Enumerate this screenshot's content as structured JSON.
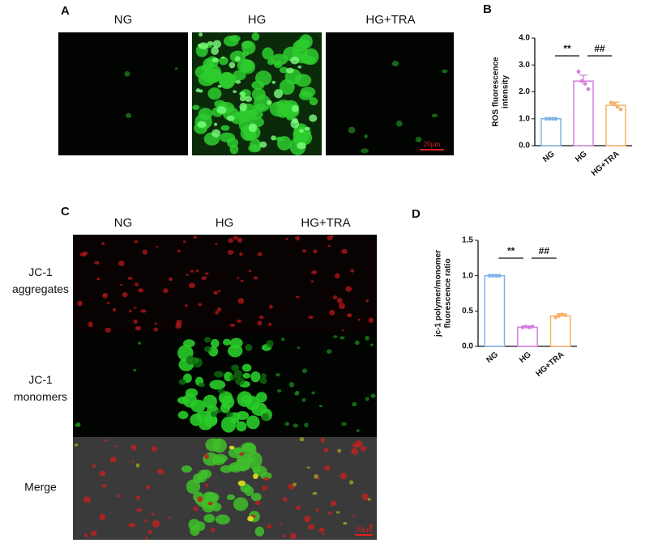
{
  "panels": {
    "a": "A",
    "b": "B",
    "c": "C",
    "d": "D"
  },
  "panel_a": {
    "columns": [
      "NG",
      "HG",
      "HG+TRA"
    ],
    "scale_bar": "20μm"
  },
  "panel_c": {
    "columns": [
      "NG",
      "HG",
      "HG+TRA"
    ],
    "rows": [
      [
        "JC-1",
        "aggregates"
      ],
      [
        "JC-1",
        "monomers"
      ],
      [
        "Merge"
      ]
    ],
    "scale_bar": "50μm"
  },
  "chart_data": [
    {
      "type": "bar",
      "ylabel": [
        "ROS fluorescence",
        "intensity"
      ],
      "categories": [
        "NG",
        "HG",
        "HG+TRA"
      ],
      "values": [
        1.0,
        2.4,
        1.5
      ],
      "errors": [
        0.01,
        0.22,
        0.12
      ],
      "points": [
        [
          1.0,
          1.0,
          1.0,
          1.0
        ],
        [
          2.75,
          2.4,
          2.3,
          2.1
        ],
        [
          1.6,
          1.55,
          1.45,
          1.35
        ]
      ],
      "colors": [
        "#7fb3e8",
        "#d67fe0",
        "#f5b26b"
      ],
      "ylim": [
        0,
        4
      ],
      "yticks": [
        {
          "value": 0,
          "label": "0.0"
        },
        {
          "value": 1,
          "label": "1.0"
        },
        {
          "value": 2,
          "label": "2.0"
        },
        {
          "value": 3,
          "label": "3.0"
        },
        {
          "value": 4,
          "label": "4.0"
        }
      ],
      "annotations": [
        "**",
        "##"
      ]
    },
    {
      "type": "bar",
      "ylabel": [
        "jc-1 polymer/monomer",
        "fluorescence ratio"
      ],
      "categories": [
        "NG",
        "HG",
        "HG+TRA"
      ],
      "values": [
        1.0,
        0.27,
        0.43
      ],
      "errors": [
        0.01,
        0.01,
        0.03
      ],
      "points": [
        [
          1.0,
          1.0,
          1.0,
          1.0
        ],
        [
          0.27,
          0.28,
          0.27,
          0.28
        ],
        [
          0.41,
          0.43,
          0.45,
          0.44
        ]
      ],
      "colors": [
        "#7fb3e8",
        "#d67fe0",
        "#f5b26b"
      ],
      "ylim": [
        0,
        1.5
      ],
      "yticks": [
        {
          "value": 0,
          "label": "0.0"
        },
        {
          "value": 0.5,
          "label": "0.5"
        },
        {
          "value": 1,
          "label": "1.0"
        },
        {
          "value": 1.5,
          "label": "1.5"
        }
      ],
      "annotations": [
        "**",
        "##"
      ]
    }
  ]
}
